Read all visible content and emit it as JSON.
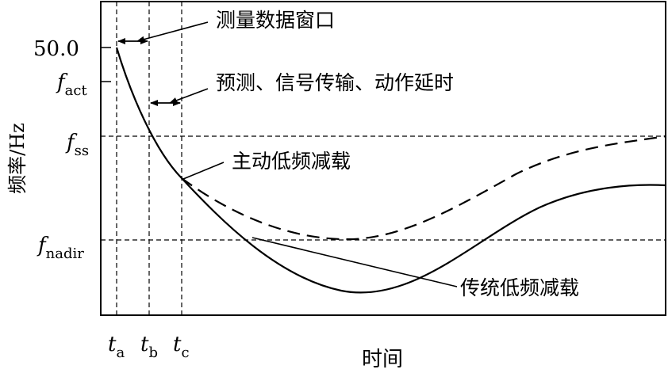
{
  "axes": {
    "y_label": "频率/Hz",
    "x_label": "时间",
    "y_ticks": {
      "f50": "50.0",
      "fact": {
        "main": "f",
        "sub": "act"
      },
      "fss": {
        "main": "f",
        "sub": "ss"
      },
      "fnadir": {
        "main": "f",
        "sub": "nadir"
      }
    },
    "x_ticks": {
      "ta": {
        "main": "t",
        "sub": "a"
      },
      "tb": {
        "main": "t",
        "sub": "b"
      },
      "tc": {
        "main": "t",
        "sub": "c"
      }
    }
  },
  "annotations": {
    "measurement_window": "测量数据窗口",
    "prediction_delay": "预测、信号传输、动作延时",
    "active_shedding": "主动低频减载",
    "traditional_shedding": "传统低频减载"
  },
  "curves": {
    "active": {
      "name": "主动低频减载",
      "style": "dashed"
    },
    "traditional": {
      "name": "传统低频减载",
      "style": "solid"
    }
  }
}
